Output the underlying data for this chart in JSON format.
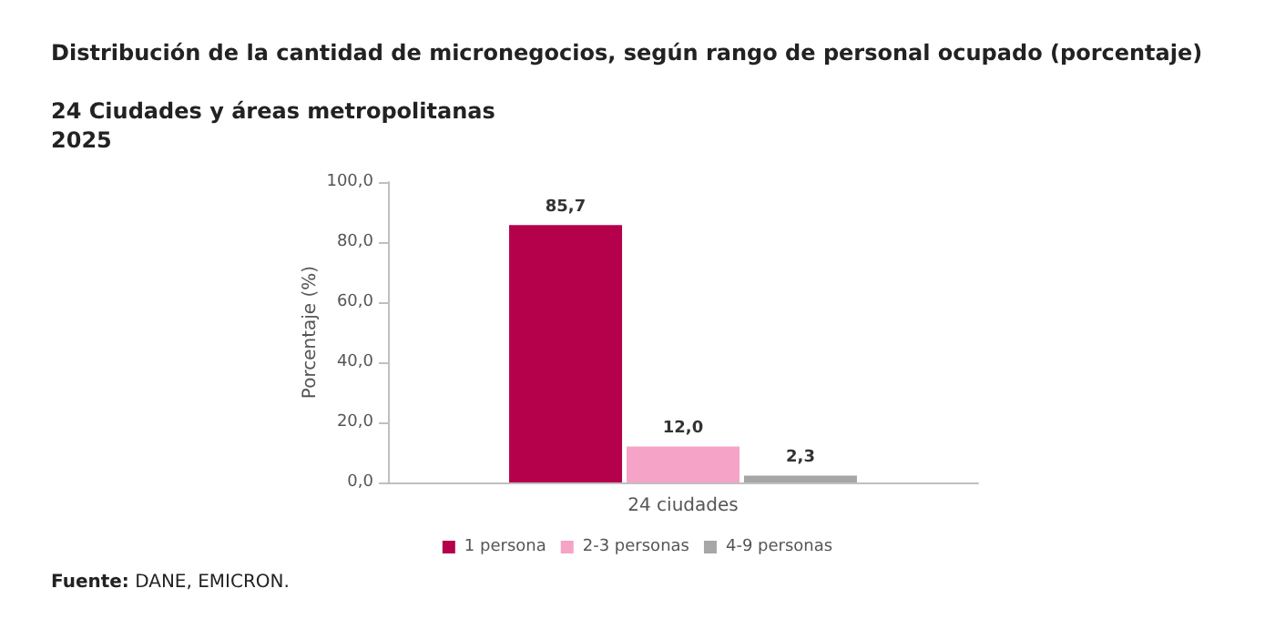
{
  "chart_data": {
    "type": "bar",
    "title": "Distribución de la cantidad de micronegocios, según rango de personal ocupado (porcentaje)",
    "subtitle": "24 Ciudades y áreas metropolitanas\n2025",
    "ylabel": "Porcentaje (%)",
    "categories": [
      "24 ciudades"
    ],
    "series": [
      {
        "name": "1 persona",
        "color": "#b5004b",
        "values": [
          85.7
        ],
        "value_labels": [
          "85,7"
        ]
      },
      {
        "name": "2-3 personas",
        "color": "#f5a3c7",
        "values": [
          12.0
        ],
        "value_labels": [
          "12,0"
        ]
      },
      {
        "name": "4-9 personas",
        "color": "#a6a6a6",
        "values": [
          2.3
        ],
        "value_labels": [
          "2,3"
        ]
      }
    ],
    "ylim": [
      0,
      100
    ],
    "yticks": [
      {
        "value": 0,
        "label": "0,0"
      },
      {
        "value": 20,
        "label": "20,0"
      },
      {
        "value": 40,
        "label": "40,0"
      },
      {
        "value": 60,
        "label": "60,0"
      },
      {
        "value": 80,
        "label": "80,0"
      },
      {
        "value": 100,
        "label": "100,0"
      }
    ],
    "grid": false,
    "legend": "bottom",
    "annotations": [
      "Fuente: DANE, EMICRON."
    ]
  }
}
